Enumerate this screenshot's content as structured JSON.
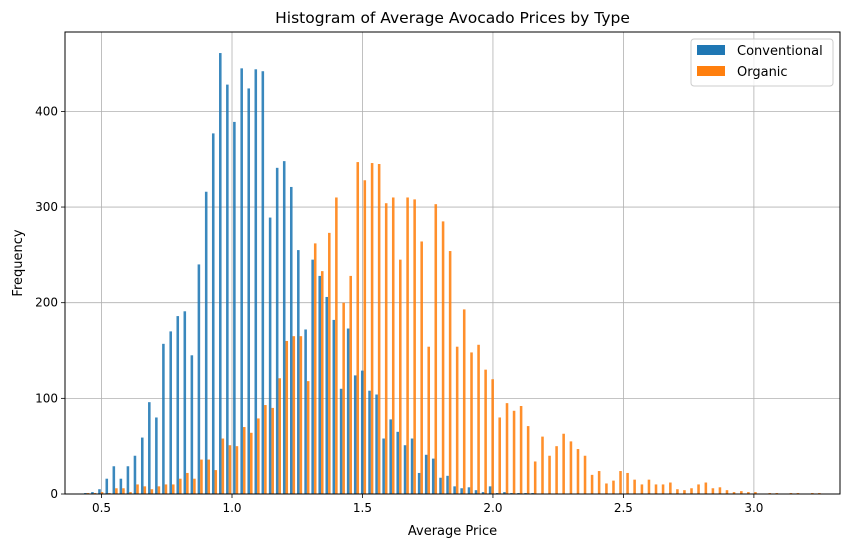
{
  "chart_data": {
    "type": "bar",
    "title": "Histogram of Average Avocado Prices by Type",
    "xlabel": "Average Price",
    "ylabel": "Frequency",
    "xlim": [
      0.36,
      3.33
    ],
    "ylim": [
      0,
      483
    ],
    "xticks": [
      0.5,
      1.0,
      1.5,
      2.0,
      2.5,
      3.0
    ],
    "xtick_labels": [
      "0.5",
      "1.0",
      "1.5",
      "2.0",
      "2.5",
      "3.0"
    ],
    "yticks": [
      0,
      100,
      200,
      300,
      400
    ],
    "ytick_labels": [
      "0",
      "100",
      "200",
      "300",
      "400"
    ],
    "grid": true,
    "legend_position": "top-right",
    "bin_width": 0.0272,
    "series": [
      {
        "name": "Conventional",
        "color": "#1f77b4",
        "x": [
          0.443,
          0.47,
          0.497,
          0.525,
          0.552,
          0.579,
          0.606,
          0.633,
          0.661,
          0.688,
          0.715,
          0.742,
          0.77,
          0.797,
          0.824,
          0.851,
          0.878,
          0.906,
          0.933,
          0.96,
          0.987,
          1.014,
          1.042,
          1.069,
          1.096,
          1.123,
          1.151,
          1.178,
          1.205,
          1.232,
          1.259,
          1.287,
          1.314,
          1.341,
          1.368,
          1.395,
          1.423,
          1.45,
          1.477,
          1.504,
          1.532,
          1.559,
          1.586,
          1.613,
          1.64,
          1.668,
          1.695,
          1.722,
          1.749,
          1.776,
          1.804,
          1.831,
          1.858,
          1.885,
          1.913,
          1.94,
          1.967,
          1.994,
          2.021,
          2.049,
          2.076,
          2.103,
          2.13,
          2.157,
          2.185,
          2.212,
          2.239,
          2.266,
          2.294,
          2.321,
          2.348,
          2.375,
          2.402,
          2.43,
          2.457,
          2.484,
          2.511,
          2.538,
          2.566,
          2.593,
          2.62,
          2.647,
          2.675,
          2.702,
          2.729,
          2.756,
          2.783,
          2.811,
          2.838,
          2.865,
          2.892,
          2.919,
          2.947,
          2.974,
          3.001,
          3.028,
          3.056,
          3.083,
          3.11,
          3.137,
          3.164,
          3.192,
          3.219,
          3.246
        ],
        "values": [
          1,
          2,
          5,
          16,
          29,
          16,
          29,
          40,
          59,
          96,
          80,
          157,
          170,
          186,
          191,
          145,
          240,
          316,
          377,
          461,
          428,
          389,
          445,
          424,
          444,
          442,
          289,
          341,
          348,
          321,
          255,
          172,
          245,
          228,
          206,
          182,
          110,
          173,
          124,
          129,
          108,
          104,
          58,
          78,
          65,
          51,
          58,
          22,
          41,
          37,
          17,
          19,
          8,
          6,
          7,
          4,
          2,
          8,
          1,
          2,
          1,
          1,
          1,
          1,
          0,
          0,
          0,
          0,
          0,
          0,
          0,
          0,
          0,
          0,
          0,
          0,
          0,
          0,
          0,
          0,
          0,
          0,
          0,
          0,
          0,
          0,
          0,
          0,
          0,
          0,
          0,
          0,
          0,
          0,
          0,
          0,
          0,
          0,
          0,
          0,
          0,
          0,
          0,
          0
        ]
      },
      {
        "name": "Organic",
        "color": "#ff7f0e",
        "x": [
          0.443,
          0.47,
          0.497,
          0.525,
          0.552,
          0.579,
          0.606,
          0.633,
          0.661,
          0.688,
          0.715,
          0.742,
          0.77,
          0.797,
          0.824,
          0.851,
          0.878,
          0.906,
          0.933,
          0.96,
          0.987,
          1.014,
          1.042,
          1.069,
          1.096,
          1.123,
          1.151,
          1.178,
          1.205,
          1.232,
          1.259,
          1.287,
          1.314,
          1.341,
          1.368,
          1.395,
          1.423,
          1.45,
          1.477,
          1.504,
          1.532,
          1.559,
          1.586,
          1.613,
          1.64,
          1.668,
          1.695,
          1.722,
          1.749,
          1.776,
          1.804,
          1.831,
          1.858,
          1.885,
          1.913,
          1.94,
          1.967,
          1.994,
          2.021,
          2.049,
          2.076,
          2.103,
          2.13,
          2.157,
          2.185,
          2.212,
          2.239,
          2.266,
          2.294,
          2.321,
          2.348,
          2.375,
          2.402,
          2.43,
          2.457,
          2.484,
          2.511,
          2.538,
          2.566,
          2.593,
          2.62,
          2.647,
          2.675,
          2.702,
          2.729,
          2.756,
          2.783,
          2.811,
          2.838,
          2.865,
          2.892,
          2.919,
          2.947,
          2.974,
          3.001,
          3.028,
          3.056,
          3.083,
          3.11,
          3.137,
          3.164,
          3.192,
          3.219,
          3.246
        ],
        "values": [
          1,
          1,
          2,
          1,
          6,
          6,
          2,
          10,
          8,
          5,
          8,
          10,
          10,
          16,
          22,
          16,
          36,
          36,
          25,
          58,
          51,
          50,
          70,
          64,
          79,
          93,
          90,
          121,
          160,
          165,
          165,
          118,
          262,
          233,
          273,
          310,
          200,
          228,
          347,
          328,
          346,
          345,
          304,
          310,
          245,
          310,
          308,
          264,
          154,
          303,
          285,
          254,
          154,
          193,
          148,
          156,
          130,
          120,
          80,
          95,
          87,
          92,
          71,
          34,
          60,
          40,
          50,
          63,
          55,
          47,
          40,
          20,
          24,
          11,
          14,
          24,
          22,
          15,
          10,
          15,
          10,
          10,
          12,
          5,
          4,
          6,
          10,
          12,
          6,
          7,
          4,
          2,
          3,
          2,
          2,
          0,
          1,
          1,
          0,
          1,
          1,
          0,
          1,
          1
        ]
      }
    ]
  }
}
